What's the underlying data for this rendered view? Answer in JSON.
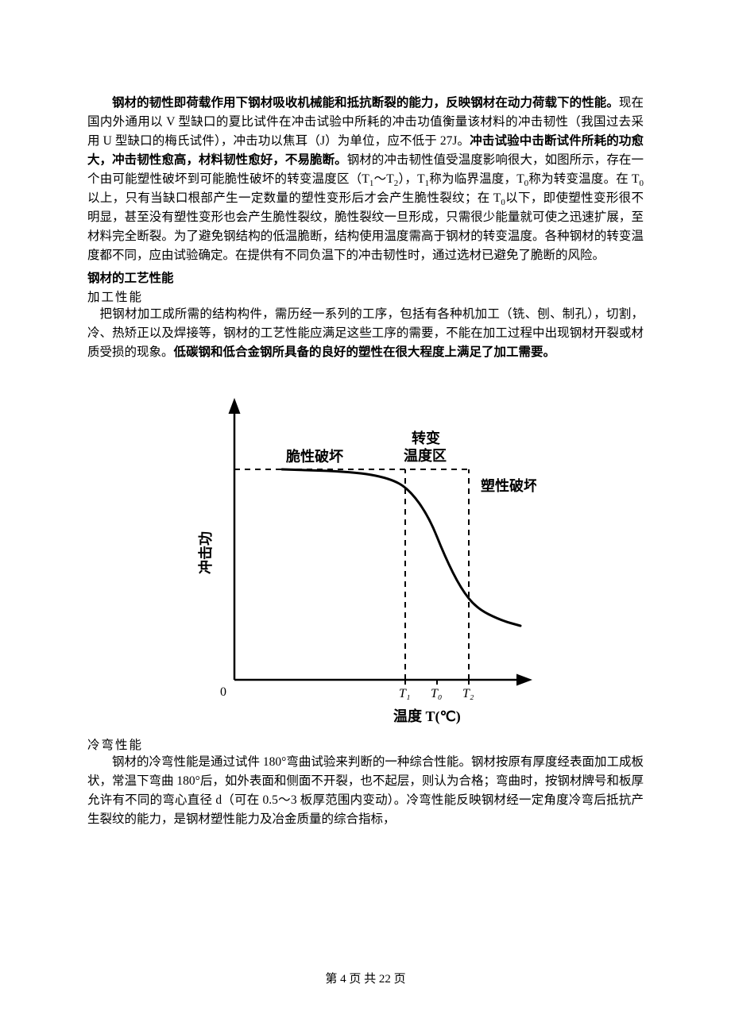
{
  "text": {
    "p1_bold_lead": "钢材的韧性即荷载作用下钢材吸收机械能和抵抗断裂的能力，反映钢材在动力荷载下的性能。",
    "p1_a": "现在国内外通用以 V 型缺口的夏比试件在冲击试验中所耗的冲击功值衡量该材料的冲击韧性（我国过去采用 U 型缺口的梅氏试件），冲击功以焦耳（J）为单位，应不低于 27J。",
    "p1_bold_mid": "冲击试验中击断试件所耗的功愈大，冲击韧性愈高，材料韧性愈好，不易脆断。",
    "p1_b": "钢材的冲击韧性值受温度影响很大，如图所示，存在一个由可能塑性破坏到可能脆性破坏的转变温度区（T",
    "p1_b2": "称为临界温度，T",
    "p1_b3": "称为转变温度。在 T",
    "p1_b4": "以上，只有当缺口根部产生一定数量的塑性变形后才会产生脆性裂纹；在 T",
    "p1_b5": "以下，即使塑性变形很不明显，甚至没有塑性变形也会产生脆性裂纹，脆性裂纹一旦形成，只需很少能量就可使之迅速扩展，至材料完全断裂。为了避免钢结构的低温脆断，结构使用温度需高于钢材的转变温度。各种钢材的转变温度都不同，应由试验确定。在提供有不同负温下的冲击韧性时，通过选材已避免了脆断的风险。",
    "sec_title": "钢材的工艺性能",
    "sub_proc": "加工性能",
    "p2_a": "把钢材加工成所需的结构构件，需历经一系列的工序，包括有各种机加工（铣、刨、制孔），切割，冷、热矫正以及焊接等，钢材的工艺性能应满足这些工序的需要，不能在加工过程中出现钢材开裂或材质受损的现象。",
    "p2_bold": "低碳钢和低合金钢所具备的良好的塑性在很大程度上满足了加工需要。",
    "sub_cold": "冷弯性能",
    "p3": "钢材的冷弯性能是通过试件 180°弯曲试验来判断的一种综合性能。钢材按原有厚度经表面加工成板状，常温下弯曲 180°后，如外表面和侧面不开裂，也不起层，则认为合格；弯曲时，按钢材牌号和板厚允许有不同的弯心直径 d（可在 0.5～3 板厚范围内变动）。冷弯性能反映钢材经一定角度冷弯后抵抗产生裂纹的能力，是钢材塑性能力及冶金质量的综合指标，"
  },
  "chart": {
    "type": "line",
    "background_color": "#ffffff",
    "axis_color": "#000000",
    "curve_color": "#000000",
    "dashed_color": "#000000",
    "line_width": 2.5,
    "dash_pattern": "7,6",
    "y_label": "冲击功",
    "x_label": "温度 T(℃)",
    "label_fontsize": 18,
    "tick_fontsize": 16,
    "origin_label": "0",
    "region_labels": {
      "brittle": "脆性破坏",
      "trans_l1": "转变",
      "trans_l2": "温度区",
      "plastic": "塑性破坏"
    },
    "ticks": {
      "t1": "T₁",
      "t0": "T₀",
      "t2": "T₂"
    },
    "xlim": [
      0,
      360
    ],
    "ylim": [
      0,
      340
    ],
    "x_positions": {
      "t1": 215,
      "t0": 255,
      "t2": 295
    },
    "plateau_y": 90,
    "curve_points": [
      [
        60,
        265
      ],
      [
        150,
        262
      ],
      [
        195,
        254
      ],
      [
        220,
        240
      ],
      [
        245,
        205
      ],
      [
        265,
        155
      ],
      [
        285,
        115
      ],
      [
        305,
        90
      ],
      [
        335,
        75
      ],
      [
        360,
        68
      ]
    ]
  },
  "footer": {
    "prefix": "第 ",
    "page": "4",
    "mid": " 页 共 ",
    "total": "22",
    "suffix": " 页"
  }
}
